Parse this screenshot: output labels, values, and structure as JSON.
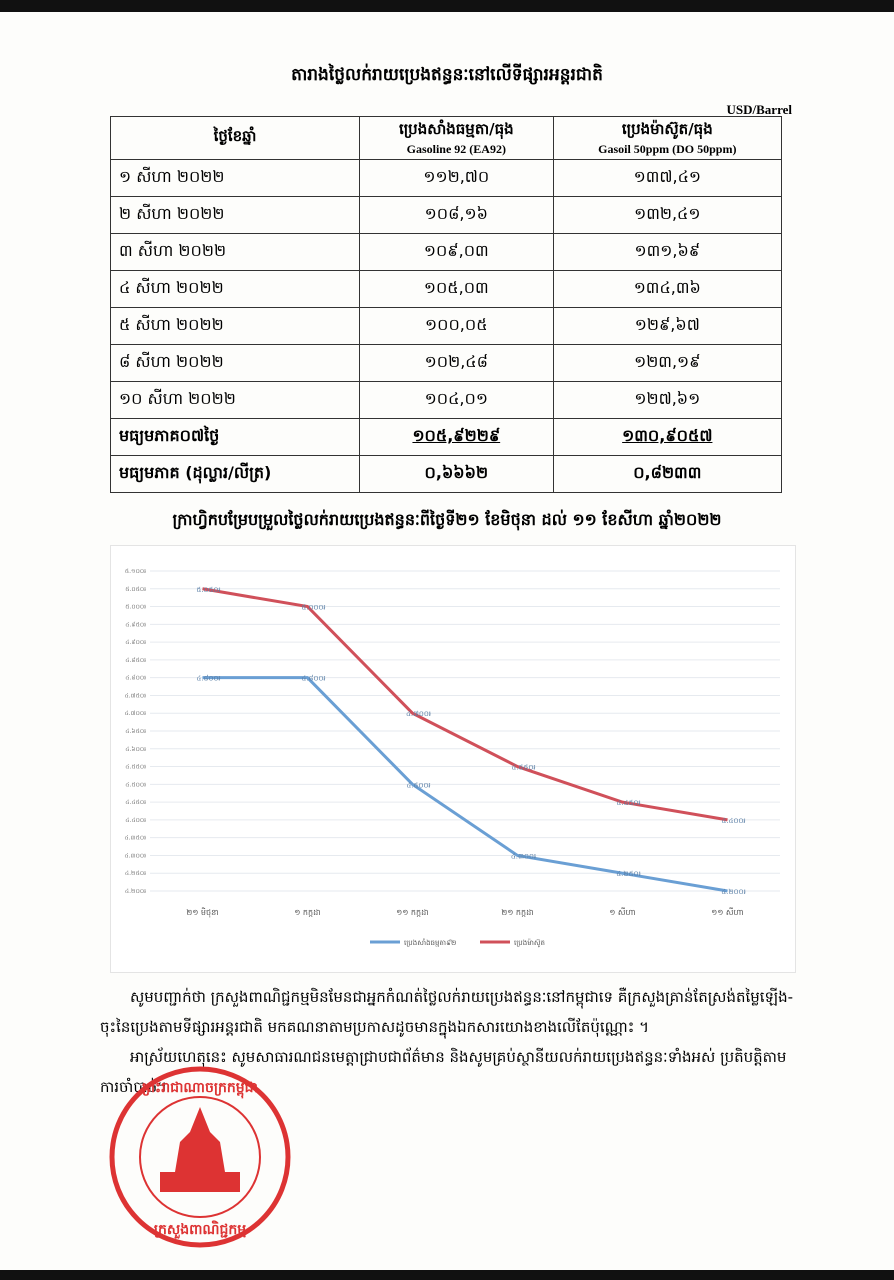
{
  "header": {
    "title": "តារាងថ្លៃលក់រាយប្រេងឥន្ធនៈនៅលើទីផ្សារអន្តរជាតិ",
    "unit": "USD/Barrel"
  },
  "table": {
    "headers": [
      [
        "ថ្ងៃខែឆ្នាំ"
      ],
      [
        "ប្រេងសាំងធម្មតា/ធុង",
        "Gasoline 92 (EA92)"
      ],
      [
        "ប្រេងម៉ាស៊ូត/ធុង",
        "Gasoil 50ppm (DO 50ppm)"
      ]
    ],
    "rows": [
      [
        "១ សីហា ២០២២",
        "១១២,៧០",
        "១៣៧,៤១"
      ],
      [
        "២ សីហា ២០២២",
        "១០៨,១៦",
        "១៣២,៤១"
      ],
      [
        "៣ សីហា ២០២២",
        "១០៩,០៣",
        "១៣១,៦៩"
      ],
      [
        "៤ សីហា ២០២២",
        "១០៥,០៣",
        "១៣៤,៣៦"
      ],
      [
        "៥ សីហា ២០២២",
        "១០០,០៥",
        "១២៩,៦៧"
      ],
      [
        "៨ សីហា ២០២២",
        "១០២,៤៨",
        "១២៣,១៩"
      ],
      [
        "១០ សីហា ២០២២",
        "១០៤,០១",
        "១២៧,៦១"
      ],
      [
        "មធ្យមភាគ០៧ថ្ងៃ",
        "១០៥,៩២២៩",
        "១៣០,៩០៥៧"
      ],
      [
        "មធ្យមភាគ (ដុល្លារ/លីត្រ)",
        "០,៦៦៦២",
        "០,៨២៣៣"
      ]
    ]
  },
  "chart_data": {
    "type": "line",
    "title": "ក្រាហ្វិកបម្រែបម្រួលថ្លៃលក់រាយប្រេងឥន្ធនៈពីថ្ងៃទី២១ ខែមិថុនា ដល់ ១១ ខែសីហា ឆ្នាំ២០២២",
    "categories": [
      "២១ មិថុនា",
      "១ កក្កដា",
      "១១ កក្កដា",
      "២១ កក្កដា",
      "១ សីហា",
      "១១ សីហា"
    ],
    "series": [
      {
        "name": "ប្រេងសាំងធម្មតា៩២",
        "color": "#6a9fd4",
        "values": [
          4800,
          4800,
          4500,
          4300,
          4250,
          4200
        ],
        "value_labels": [
          "៤.៨០០៛",
          "៤.៨០០៛",
          "៤.៥០០៛",
          "៤.៣០០៛",
          "៤.២៥០៛",
          "៤.២០០៛"
        ]
      },
      {
        "name": "ប្រេងម៉ាស៊ូត",
        "color": "#d0505a",
        "values": [
          5050,
          5000,
          4700,
          4550,
          4450,
          4400
        ],
        "value_labels": [
          "៥.០៥០៛",
          "៥.០០០៛",
          "៤.៧០០៛",
          "៤.៥៥០៛",
          "៤.៤៥០៛",
          "៤.៤០០៛"
        ]
      }
    ],
    "ylim": [
      4200,
      5100
    ],
    "yticks": [
      {
        "value": 4200,
        "label": "៤.២០០៛"
      },
      {
        "value": 4250,
        "label": "៤.២៥០៛"
      },
      {
        "value": 4300,
        "label": "៤.៣០០៛"
      },
      {
        "value": 4350,
        "label": "៤.៣៥០៛"
      },
      {
        "value": 4400,
        "label": "៤.៤០០៛"
      },
      {
        "value": 4450,
        "label": "៤.៤៥០៛"
      },
      {
        "value": 4500,
        "label": "៤.៥០០៛"
      },
      {
        "value": 4550,
        "label": "៤.៥៥០៛"
      },
      {
        "value": 4600,
        "label": "៤.៦០០៛"
      },
      {
        "value": 4650,
        "label": "៤.៦៥០៛"
      },
      {
        "value": 4700,
        "label": "៤.៧០០៛"
      },
      {
        "value": 4750,
        "label": "៤.៧៥០៛"
      },
      {
        "value": 4800,
        "label": "៤.៨០០៛"
      },
      {
        "value": 4850,
        "label": "៤.៨៥០៛"
      },
      {
        "value": 4900,
        "label": "៤.៩០០៛"
      },
      {
        "value": 4950,
        "label": "៤.៩៥០៛"
      },
      {
        "value": 5000,
        "label": "៥.០០០៛"
      },
      {
        "value": 5050,
        "label": "៥.០៥០៛"
      },
      {
        "value": 5100,
        "label": "៥.១០០៛"
      }
    ],
    "grid": true
  },
  "notes": [
    "សូមបញ្ជាក់ថា ក្រសួងពាណិជ្ជកម្មមិនមែនជាអ្នកកំណត់ថ្លៃលក់រាយប្រេងឥន្ធនៈនៅកម្ពុជាទេ គឺក្រសួងគ្រាន់តែស្រង់តម្លៃឡើង-ចុះនៃប្រេងតាមទីផ្សារអន្តរជាតិ មកគណនាតាមប្រកាសដូចមានក្នុងឯកសារយោងខាងលើតែប៉ុណ្ណោះ ។",
    "អាស្រ័យហេតុនេះ សូមសាធារណជនមេត្តាជ្រាបជាព័ត៌មាន និងសូមគ្រប់ស្ថានីយលក់រាយប្រេងឥន្ធនៈទាំងអស់ ប្រតិបត្តិតាមការចាំបាច់។"
  ],
  "stamp": {
    "top": "ព្រះរាជាណាចក្រកម្ពុជា",
    "bottom": "ក្រសួងពាណិជ្ជកម្ម"
  }
}
